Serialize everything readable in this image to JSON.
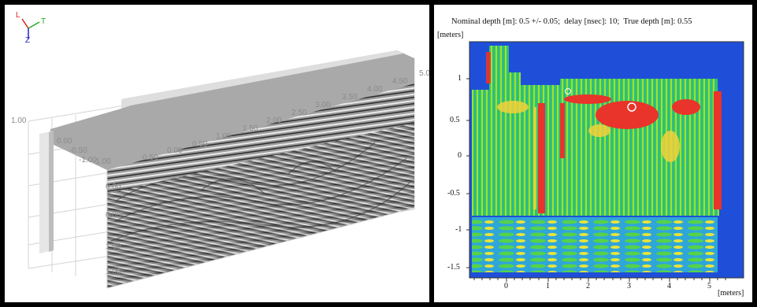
{
  "left_view": {
    "axis_triad": {
      "top_label": "T",
      "left_label": "L",
      "bottom_label": "Z"
    },
    "x_ticks": [
      "-1.00",
      "-0.50",
      "0.00",
      "0.50",
      "1.00",
      "1.50",
      "2.00",
      "2.50",
      "3.00",
      "3.50",
      "4.00",
      "4.50",
      "5.0"
    ],
    "left_ticks_back": [
      "1.00",
      "0.00",
      "-0.50",
      "-1.00"
    ],
    "face_ticks": [
      "0.00",
      "0.00",
      "1.00",
      "1.00"
    ]
  },
  "right_view": {
    "header": {
      "nominal_label": "Nominal depth [m]:",
      "nominal_value": "0.5 +/- 0.05;",
      "delay_label": "delay [nsec]:",
      "delay_value": "10;",
      "true_label": "True depth [m]:",
      "true_value": "0.55"
    },
    "y_unit": "[meters]",
    "x_unit": "[meters]",
    "y_ticks": [
      "1",
      "0.5",
      "0",
      "-0.5",
      "-1",
      "-1.5"
    ],
    "x_ticks": [
      "0",
      "1",
      "2",
      "3",
      "4",
      "5"
    ]
  }
}
